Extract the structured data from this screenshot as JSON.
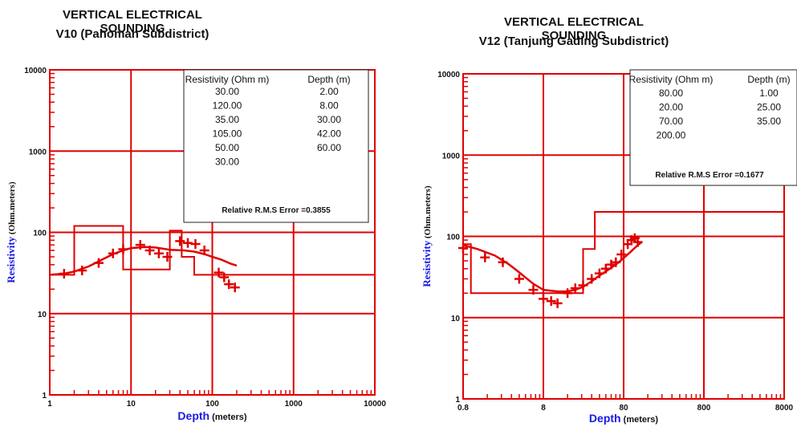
{
  "chart_data": [
    {
      "type": "scatter",
      "title": "VERTICAL ELECTRICAL SOUNDING",
      "subtitle": "V10 (Pahoman Subdistrict)",
      "xlabel": "Depth",
      "xlabel_unit": "(meters)",
      "ylabel": "Resistivity",
      "ylabel_unit": "(Ohm.meters)",
      "x_scale": "log",
      "y_scale": "log",
      "xlim": [
        1,
        10000
      ],
      "ylim": [
        1,
        10000
      ],
      "x_ticks": [
        "1",
        "10",
        "100",
        "1000",
        "10000"
      ],
      "y_ticks": [
        "1",
        "10",
        "100",
        "1000",
        "10000"
      ],
      "grid": true,
      "legend_position": "top-right",
      "table_headers": [
        "Resistivity (Ohm m)",
        "Depth (m)"
      ],
      "table_rows": [
        [
          "30.00",
          "2.00"
        ],
        [
          "120.00",
          "8.00"
        ],
        [
          "35.00",
          "30.00"
        ],
        [
          "105.00",
          "42.00"
        ],
        [
          "50.00",
          "60.00"
        ],
        [
          "30.00",
          ""
        ]
      ],
      "error_text": "Relative R.M.S Error =0.3855",
      "colors": {
        "series": "#e00000",
        "axis_label": "#1a1ae6"
      },
      "series": [
        {
          "kind": "observed",
          "points": [
            [
              1.5,
              31
            ],
            [
              2.5,
              34
            ],
            [
              4,
              42
            ],
            [
              6,
              55
            ],
            [
              8,
              62
            ],
            [
              13,
              70
            ],
            [
              17,
              60
            ],
            [
              22,
              55
            ],
            [
              28,
              50
            ],
            [
              40,
              78
            ],
            [
              50,
              74
            ],
            [
              62,
              72
            ],
            [
              80,
              60
            ],
            [
              120,
              32
            ],
            [
              140,
              28
            ],
            [
              160,
              23
            ],
            [
              190,
              21
            ]
          ]
        },
        {
          "kind": "calculated",
          "points": [
            [
              1,
              30
            ],
            [
              1.5,
              31
            ],
            [
              2,
              33
            ],
            [
              3,
              38
            ],
            [
              4,
              44
            ],
            [
              6,
              54
            ],
            [
              8,
              60
            ],
            [
              10,
              64
            ],
            [
              15,
              66
            ],
            [
              20,
              65
            ],
            [
              30,
              61
            ],
            [
              45,
              60
            ],
            [
              60,
              58
            ],
            [
              80,
              54
            ],
            [
              100,
              50
            ],
            [
              130,
              46
            ],
            [
              170,
              41
            ],
            [
              200,
              39
            ]
          ]
        },
        {
          "kind": "layer-model",
          "points": [
            [
              1,
              30
            ],
            [
              2,
              30
            ],
            [
              2,
              120
            ],
            [
              8,
              120
            ],
            [
              8,
              35
            ],
            [
              30,
              35
            ],
            [
              30,
              105
            ],
            [
              42,
              105
            ],
            [
              42,
              50
            ],
            [
              60,
              50
            ],
            [
              60,
              30
            ],
            [
              10000,
              30
            ]
          ]
        }
      ]
    },
    {
      "type": "scatter",
      "title": "VERTICAL ELECTRICAL SOUNDING",
      "subtitle": "V12 (Tanjung Gading Subdistrict)",
      "xlabel": "Depth",
      "xlabel_unit": "(meters)",
      "ylabel": "Resistivity",
      "ylabel_unit": "(Ohm.meters)",
      "x_scale": "log",
      "y_scale": "log",
      "xlim": [
        0.8,
        8000
      ],
      "ylim": [
        1,
        10000
      ],
      "x_ticks": [
        "0.8",
        "8",
        "80",
        "800",
        "8000"
      ],
      "y_ticks": [
        "1",
        "10",
        "100",
        "1000",
        "10000"
      ],
      "grid": true,
      "legend_position": "top-right",
      "table_headers": [
        "Resistivity (Ohm m)",
        "Depth (m)"
      ],
      "table_rows": [
        [
          "80.00",
          "1.00"
        ],
        [
          "20.00",
          "25.00"
        ],
        [
          "70.00",
          "35.00"
        ],
        [
          "200.00",
          ""
        ]
      ],
      "error_text": "Relative R.M.S Error =0.1677",
      "colors": {
        "series": "#e00000",
        "axis_label": "#1a1ae6"
      },
      "series": [
        {
          "kind": "observed",
          "points": [
            [
              0.8,
              72
            ],
            [
              1.5,
              55
            ],
            [
              2.5,
              48
            ],
            [
              4,
              30
            ],
            [
              6,
              22
            ],
            [
              8,
              17
            ],
            [
              10,
              16
            ],
            [
              12,
              15
            ],
            [
              16,
              20
            ],
            [
              20,
              23
            ],
            [
              25,
              25
            ],
            [
              32,
              30
            ],
            [
              40,
              35
            ],
            [
              48,
              40
            ],
            [
              56,
              45
            ],
            [
              64,
              48
            ],
            [
              75,
              60
            ],
            [
              90,
              80
            ],
            [
              100,
              90
            ],
            [
              110,
              95
            ],
            [
              120,
              85
            ]
          ]
        },
        {
          "kind": "calculated",
          "points": [
            [
              0.8,
              78
            ],
            [
              1.2,
              70
            ],
            [
              2,
              58
            ],
            [
              3,
              45
            ],
            [
              4,
              36
            ],
            [
              6,
              26
            ],
            [
              8,
              22
            ],
            [
              12,
              21
            ],
            [
              16,
              21
            ],
            [
              20,
              22
            ],
            [
              25,
              24
            ],
            [
              32,
              28
            ],
            [
              40,
              33
            ],
            [
              50,
              38
            ],
            [
              64,
              45
            ],
            [
              80,
              54
            ],
            [
              100,
              66
            ],
            [
              120,
              78
            ],
            [
              135,
              85
            ]
          ]
        },
        {
          "kind": "layer-model",
          "points": [
            [
              0.8,
              80
            ],
            [
              1,
              80
            ],
            [
              1,
              20
            ],
            [
              25,
              20
            ],
            [
              25,
              70
            ],
            [
              35,
              70
            ],
            [
              35,
              200
            ],
            [
              8000,
              200
            ]
          ]
        }
      ]
    }
  ]
}
